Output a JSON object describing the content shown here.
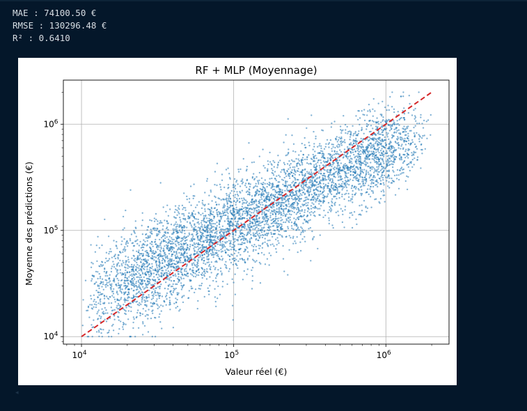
{
  "output": {
    "mae_text": "MAE : 74100.50 €",
    "rmse_text": "RMSE : 130296.48 €",
    "r2_text": "R² : 0.6410"
  },
  "chart_data": {
    "type": "scatter",
    "title": "RF + MLP (Moyennage)",
    "xlabel": "Valeur réel (€)",
    "ylabel": "Moyenne des prédictions (€)",
    "xscale": "log",
    "yscale": "log",
    "xlim": [
      7600,
      2600000
    ],
    "ylim": [
      8500,
      2600000
    ],
    "grid": true,
    "x_ticks": [
      {
        "value": 10000,
        "base": "10",
        "exp": "4"
      },
      {
        "value": 100000,
        "base": "10",
        "exp": "5"
      },
      {
        "value": 1000000,
        "base": "10",
        "exp": "6"
      }
    ],
    "y_ticks": [
      {
        "value": 10000,
        "base": "10",
        "exp": "4"
      },
      {
        "value": 100000,
        "base": "10",
        "exp": "5"
      },
      {
        "value": 1000000,
        "base": "10",
        "exp": "6"
      }
    ],
    "series": [
      {
        "name": "Prédictions",
        "color": "#1f77b4",
        "description_of_cloud": "dense point cloud around y≈x, slope < 1",
        "x_min": 10000,
        "x_max": 2000000,
        "y_min": 10000,
        "y_max": 2000000
      },
      {
        "name": "Référence y = x",
        "color": "#d62728",
        "style": "dashed",
        "x": [
          10000,
          2000000
        ],
        "y": [
          10000,
          2000000
        ]
      }
    ]
  },
  "colors": {
    "page_bg": "#04172a",
    "text": "#d7dde3",
    "points": "#1f77b4",
    "reference_line": "#d62728",
    "grid": "#b0b0b0"
  }
}
